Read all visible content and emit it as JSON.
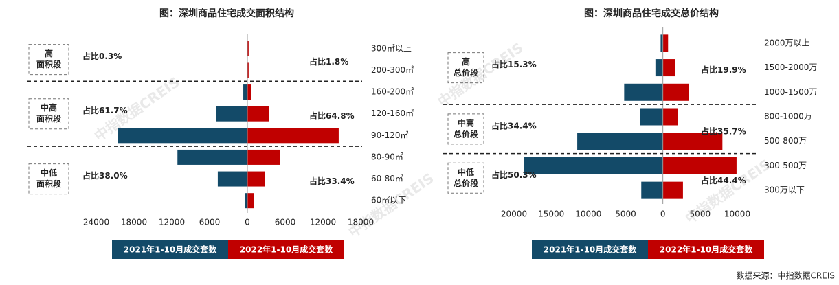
{
  "chart_data": [
    {
      "type": "butterfly",
      "title": "图：深圳商品住宅成交面积结构",
      "categories": [
        "300㎡以上",
        "200-300㎡",
        "160-200㎡",
        "120-160㎡",
        "90-120㎡",
        "80-90㎡",
        "60-80㎡",
        "60㎡以下"
      ],
      "series": [
        {
          "name": "2021年1-10月成交套数",
          "color": "#134a68",
          "side": "left",
          "values": [
            100,
            100,
            650,
            5000,
            20600,
            11100,
            4700,
            350
          ]
        },
        {
          "name": "2022年1-10月成交套数",
          "color": "#c00000",
          "side": "right",
          "values": [
            200,
            200,
            550,
            3400,
            14500,
            5200,
            2800,
            1000
          ]
        }
      ],
      "groups": [
        {
          "label": [
            "高",
            "面积段"
          ],
          "count": 2,
          "shares": [
            "占比0.3%",
            "占比1.8%"
          ]
        },
        {
          "label": [
            "中高",
            "面积段"
          ],
          "count": 3,
          "shares": [
            "占比61.7%",
            "占比64.8%"
          ]
        },
        {
          "label": [
            "中低",
            "面积段"
          ],
          "count": 3,
          "shares": [
            "占比38.0%",
            "占比33.4%"
          ]
        }
      ],
      "xlim": [
        -24000,
        18000
      ],
      "xticks": [
        {
          "value": -24000,
          "label": "24000"
        },
        {
          "value": -18000,
          "label": "18000"
        },
        {
          "value": -12000,
          "label": "12000"
        },
        {
          "value": -6000,
          "label": "6000"
        },
        0,
        6000,
        12000,
        18000
      ]
    },
    {
      "type": "butterfly",
      "title": "图：深圳商品住宅成交总价结构",
      "categories": [
        "2000万以上",
        "1500-2000万",
        "1000-1500万",
        "800-1000万",
        "500-800万",
        "300-500万",
        "300万以下"
      ],
      "series": [
        {
          "name": "2021年1-10月成交套数",
          "color": "#134a68",
          "side": "left",
          "values": [
            300,
            1000,
            5200,
            3100,
            11500,
            18700,
            2900
          ]
        },
        {
          "name": "2022年1-10月成交套数",
          "color": "#c00000",
          "side": "right",
          "values": [
            700,
            1600,
            3500,
            2000,
            8000,
            9900,
            2700
          ]
        }
      ],
      "groups": [
        {
          "label": [
            "高",
            "总价段"
          ],
          "count": 3,
          "shares": [
            "占比15.3%",
            "占比19.9%"
          ]
        },
        {
          "label": [
            "中高",
            "总价段"
          ],
          "count": 2,
          "shares": [
            "占比34.4%",
            "占比35.7%"
          ]
        },
        {
          "label": [
            "中低",
            "总价段"
          ],
          "count": 2,
          "shares": [
            "占比50.3%",
            "占比44.4%"
          ]
        }
      ],
      "xlim": [
        -20000,
        10000
      ],
      "xticks": [
        {
          "value": -20000,
          "label": "20000"
        },
        {
          "value": -15000,
          "label": "15000"
        },
        {
          "value": -10000,
          "label": "10000"
        },
        {
          "value": -5000,
          "label": "5000"
        },
        0,
        5000,
        10000
      ]
    }
  ],
  "source": "数据来源：中指数据CREIS",
  "watermark": "中指数据CREIS"
}
